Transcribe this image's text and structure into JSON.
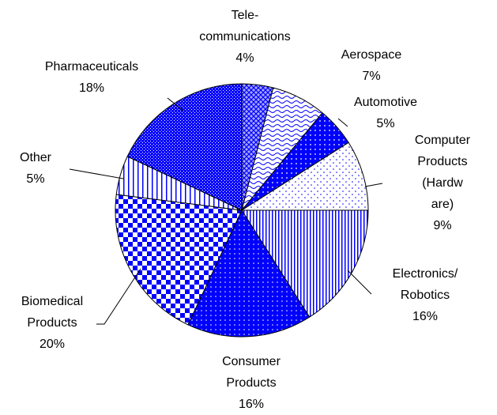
{
  "chart_data": {
    "type": "pie",
    "categories": [
      "Tele-\ncommunications",
      "Aerospace",
      "Automotive",
      "Computer\nProducts\n(Hardw are)",
      "Electronics/\nRobotics",
      "Consumer\nProducts",
      "Biomedical\nProducts",
      "Other",
      "Pharmaceuticals"
    ],
    "values": [
      4,
      7,
      5,
      9,
      16,
      16,
      20,
      5,
      18
    ],
    "value_labels": [
      "4%",
      "7%",
      "5%",
      "9%",
      "16%",
      "16%",
      "20%",
      "5%",
      "18%"
    ],
    "color": "#0000ff"
  }
}
